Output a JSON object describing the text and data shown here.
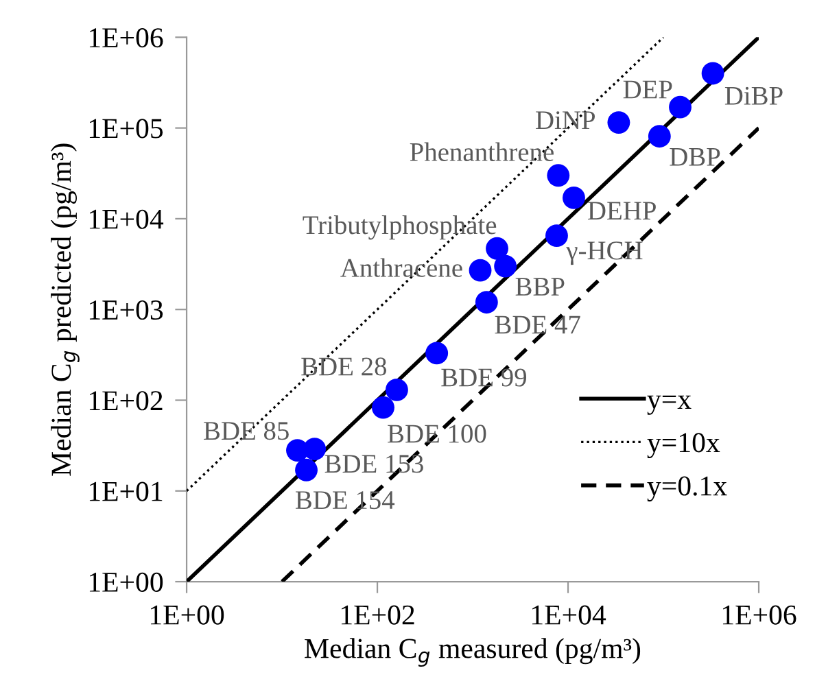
{
  "chart_data": {
    "type": "scatter",
    "xlabel": "Median C$_{g}$ measured (pg/m³)",
    "ylabel": "Median C$_{g}$ predicted (pg/m³)",
    "log": "xy",
    "xlim": [
      1,
      1000000
    ],
    "ylim": [
      1,
      1000000
    ],
    "xticks": [
      {
        "value": 1,
        "label": "1E+00"
      },
      {
        "value": 100,
        "label": "1E+02"
      },
      {
        "value": 10000,
        "label": "1E+04"
      },
      {
        "value": 1000000,
        "label": "1E+06"
      }
    ],
    "yticks": [
      {
        "value": 1,
        "label": "1E+00"
      },
      {
        "value": 10,
        "label": "1E+01"
      },
      {
        "value": 100,
        "label": "1E+02"
      },
      {
        "value": 1000,
        "label": "1E+03"
      },
      {
        "value": 10000,
        "label": "1E+04"
      },
      {
        "value": 100000,
        "label": "1E+05"
      },
      {
        "value": 1000000,
        "label": "1E+06"
      }
    ],
    "grid": false,
    "legend": "bottom right",
    "marker": "circle",
    "series": [
      {
        "type": "scatter",
        "color": "#0000ff",
        "x": [
          330000,
          150000,
          34000,
          91000,
          7900,
          11500,
          7600,
          1800,
          1200,
          2200,
          1400,
          420,
          160,
          115,
          14.5,
          22,
          18
        ],
        "values": [
          400000,
          170000,
          115000,
          81000,
          30000,
          17000,
          6500,
          4700,
          2700,
          3000,
          1200,
          330,
          130,
          83,
          28,
          29,
          17
        ]
      },
      {
        "type": "line",
        "name": "y=x",
        "color": "#000000",
        "line_style": "solid",
        "marker": "none",
        "x": [
          1,
          1000000
        ],
        "values": [
          1,
          1000000
        ]
      },
      {
        "type": "line",
        "name": "y=10x",
        "color": "#000000",
        "line_style": "dotted",
        "marker": "none",
        "x": [
          1,
          100000
        ],
        "values": [
          10,
          1000000
        ]
      },
      {
        "type": "line",
        "name": "y=0.1x",
        "color": "#000000",
        "line_style": "dashed",
        "marker": "none",
        "x": [
          10,
          1000000
        ],
        "values": [
          1,
          100000
        ]
      }
    ],
    "annotations": [
      {
        "text": "DiBP",
        "x": 330000,
        "y": 400000
      },
      {
        "text": "DEP",
        "x": 150000,
        "y": 170000
      },
      {
        "text": "DiNP",
        "x": 34000,
        "y": 115000
      },
      {
        "text": "DBP",
        "x": 91000,
        "y": 81000
      },
      {
        "text": "Phenanthrene",
        "x": 7900,
        "y": 30000
      },
      {
        "text": "DEHP",
        "x": 11500,
        "y": 17000
      },
      {
        "text": "γ-HCH",
        "x": 7600,
        "y": 6500
      },
      {
        "text": "Tributylphosphate",
        "x": 1800,
        "y": 4700
      },
      {
        "text": "Anthracene",
        "x": 1200,
        "y": 2700
      },
      {
        "text": "BBP",
        "x": 2200,
        "y": 3000
      },
      {
        "text": "BDE 47",
        "x": 1400,
        "y": 1200
      },
      {
        "text": "BDE 99",
        "x": 420,
        "y": 330
      },
      {
        "text": "BDE 28",
        "x": 160,
        "y": 130
      },
      {
        "text": "BDE 100",
        "x": 115,
        "y": 83
      },
      {
        "text": "BDE 85",
        "x": 14.5,
        "y": 28
      },
      {
        "text": "BDE 153",
        "x": 22,
        "y": 29
      },
      {
        "text": "BDE 154",
        "x": 18,
        "y": 17
      }
    ]
  }
}
